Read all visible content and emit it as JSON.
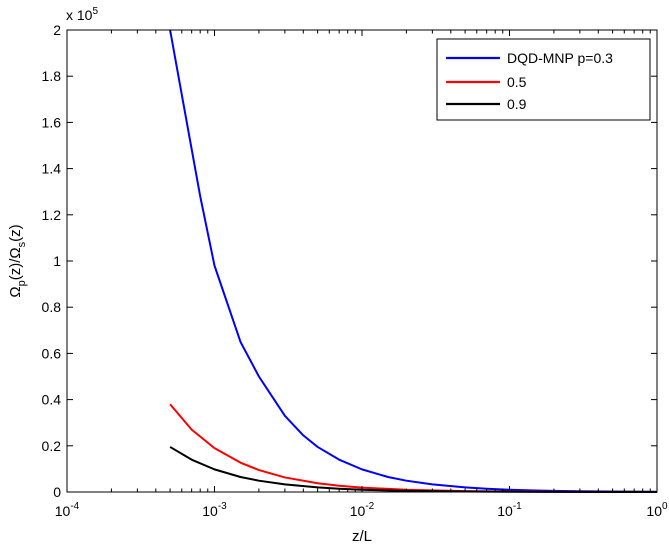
{
  "chart_data": {
    "type": "line",
    "xscale": "log",
    "xlim": [
      0.0001,
      1
    ],
    "ylim": [
      0,
      200000
    ],
    "x_ticks": [
      0.0001,
      0.001,
      0.01,
      0.1,
      1
    ],
    "x_tick_labels": [
      {
        "base": "10",
        "exp": "-4"
      },
      {
        "base": "10",
        "exp": "-3"
      },
      {
        "base": "10",
        "exp": "-2"
      },
      {
        "base": "10",
        "exp": "-1"
      },
      {
        "base": "10",
        "exp": "0"
      }
    ],
    "y_ticks": [
      0,
      0.2,
      0.4,
      0.6,
      0.8,
      1,
      1.2,
      1.4,
      1.6,
      1.8,
      2
    ],
    "y_tick_labels": [
      "0",
      "0.2",
      "0.4",
      "0.6",
      "0.8",
      "1",
      "1.2",
      "1.4",
      "1.6",
      "1.8",
      "2"
    ],
    "y_multiplier": {
      "prefix": "x 10",
      "exp": "5"
    },
    "xlabel": "z/L",
    "ylabel": {
      "a": "Ω",
      "a_sub": "p",
      "b": "(z)/Ω",
      "b_sub": "s",
      "c": "(z)"
    },
    "legend_position": "top-right",
    "grid": false,
    "series": [
      {
        "name": "DQD-MNP p=0.3",
        "color": "#0000ff",
        "points": [
          [
            0.0005,
            200000
          ],
          [
            0.0006,
            172000
          ],
          [
            0.0008,
            128000
          ],
          [
            0.001,
            98000
          ],
          [
            0.0015,
            65000
          ],
          [
            0.002,
            50000
          ],
          [
            0.003,
            33000
          ],
          [
            0.004,
            24500
          ],
          [
            0.005,
            19500
          ],
          [
            0.007,
            14000
          ],
          [
            0.01,
            9800
          ],
          [
            0.015,
            6500
          ],
          [
            0.02,
            4900
          ],
          [
            0.03,
            3300
          ],
          [
            0.05,
            2000
          ],
          [
            0.07,
            1400
          ],
          [
            0.1,
            980
          ],
          [
            0.15,
            650
          ],
          [
            0.2,
            490
          ],
          [
            0.3,
            330
          ],
          [
            0.5,
            200
          ],
          [
            0.7,
            140
          ],
          [
            1,
            98
          ]
        ]
      },
      {
        "name": "0.5",
        "color": "#ff0000",
        "points": [
          [
            0.0005,
            38000
          ],
          [
            0.0007,
            27000
          ],
          [
            0.001,
            19000
          ],
          [
            0.0015,
            12700
          ],
          [
            0.002,
            9500
          ],
          [
            0.003,
            6300
          ],
          [
            0.005,
            3800
          ],
          [
            0.007,
            2700
          ],
          [
            0.01,
            1900
          ],
          [
            0.02,
            950
          ],
          [
            0.05,
            380
          ],
          [
            0.1,
            190
          ],
          [
            0.2,
            95
          ],
          [
            0.5,
            38
          ],
          [
            1,
            19
          ]
        ]
      },
      {
        "name": "0.9",
        "color": "#000000",
        "points": [
          [
            0.0005,
            19500
          ],
          [
            0.0007,
            14000
          ],
          [
            0.001,
            9800
          ],
          [
            0.0015,
            6500
          ],
          [
            0.002,
            4900
          ],
          [
            0.003,
            3300
          ],
          [
            0.005,
            2000
          ],
          [
            0.007,
            1400
          ],
          [
            0.01,
            980
          ],
          [
            0.02,
            490
          ],
          [
            0.05,
            200
          ],
          [
            0.1,
            98
          ],
          [
            0.2,
            49
          ],
          [
            0.5,
            20
          ],
          [
            1,
            10
          ]
        ]
      }
    ]
  }
}
